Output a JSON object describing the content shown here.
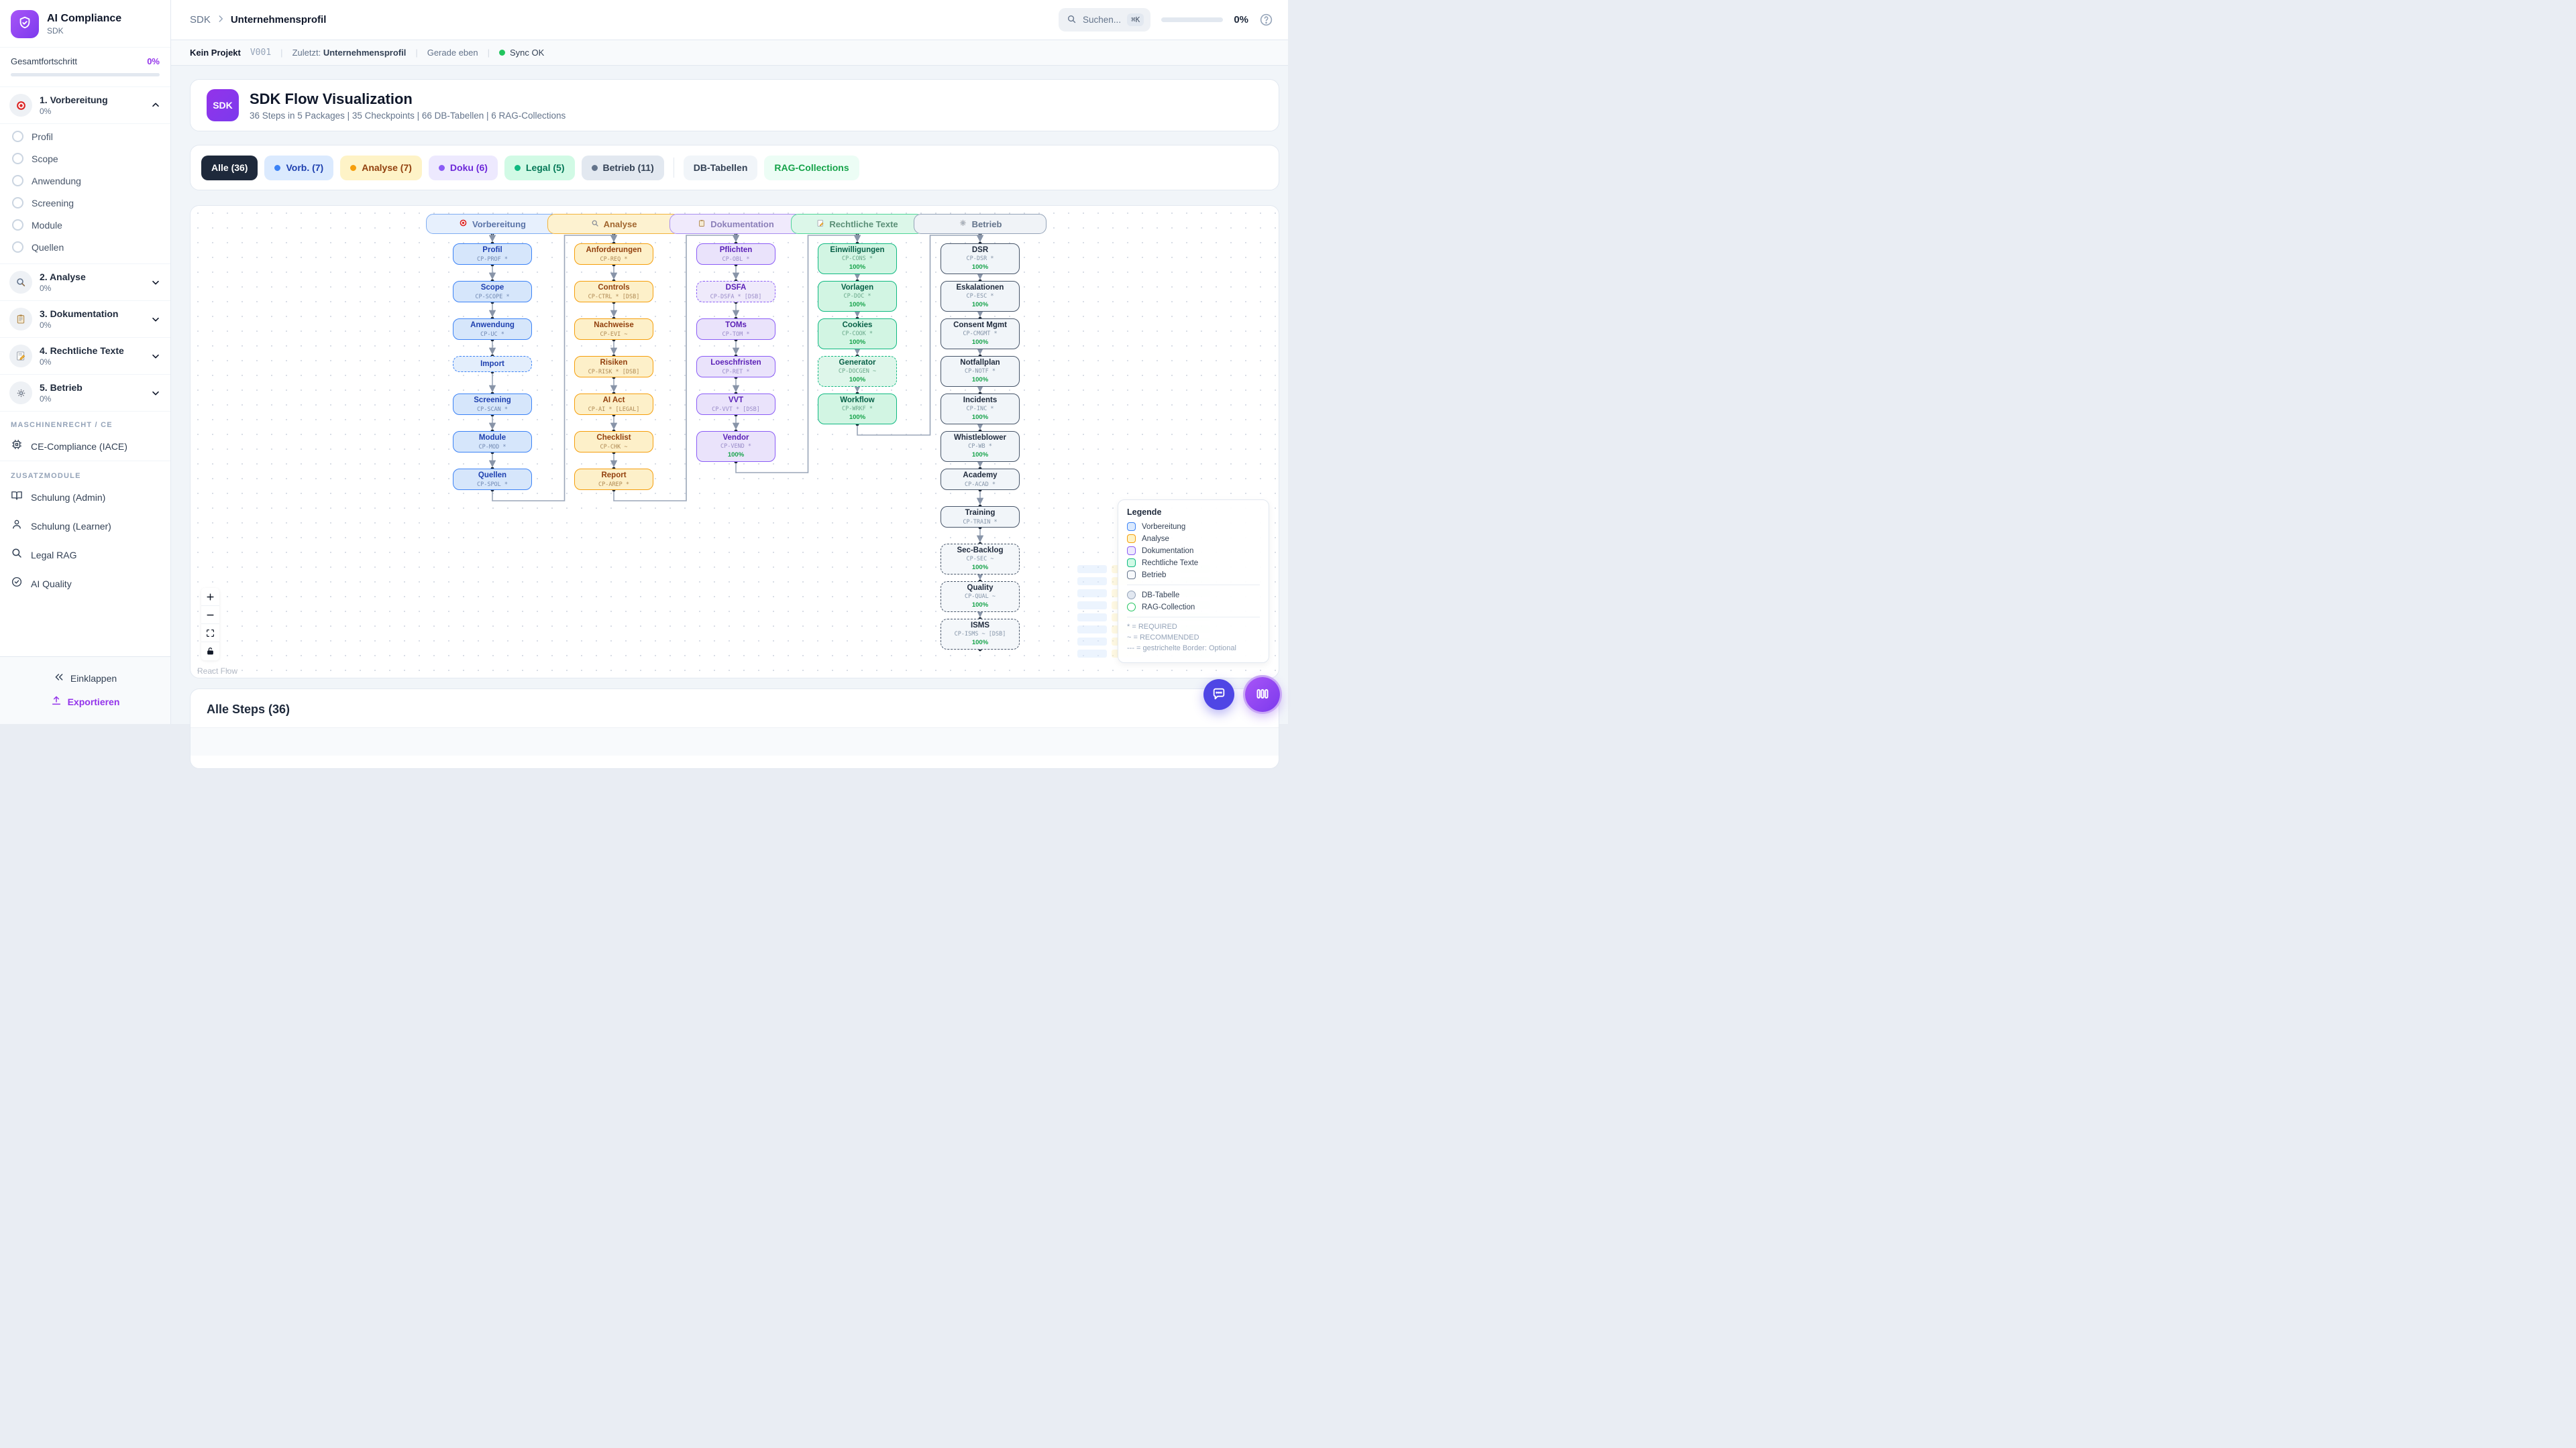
{
  "sidebar": {
    "app_title": "AI Compliance",
    "app_subtitle": "SDK",
    "progress_label": "Gesamtfortschritt",
    "progress_value": "0%",
    "sections": [
      {
        "icon": "target-icon",
        "label": "1. Vorbereitung",
        "percent": "0%",
        "expanded": true,
        "items": [
          "Profil",
          "Scope",
          "Anwendung",
          "Screening",
          "Module",
          "Quellen"
        ]
      },
      {
        "icon": "magnifier-icon",
        "label": "2. Analyse",
        "percent": "0%"
      },
      {
        "icon": "clipboard-icon",
        "label": "3. Dokumentation",
        "percent": "0%"
      },
      {
        "icon": "memo-icon",
        "label": "4. Rechtliche Texte",
        "percent": "0%"
      },
      {
        "icon": "gear-icon",
        "label": "5. Betrieb",
        "percent": "0%"
      }
    ],
    "groups": [
      {
        "heading": "MASCHINENRECHT / CE",
        "items": [
          {
            "icon": "chip-icon",
            "label": "CE-Compliance (IACE)"
          }
        ]
      },
      {
        "heading": "ZUSATZMODULE",
        "items": [
          {
            "icon": "book-icon",
            "label": "Schulung (Admin)"
          },
          {
            "icon": "user-icon",
            "label": "Schulung (Learner)"
          },
          {
            "icon": "search-icon",
            "label": "Legal RAG"
          },
          {
            "icon": "check-circle-icon",
            "label": "AI Quality"
          }
        ]
      }
    ],
    "collapse_label": "Einklappen",
    "export_label": "Exportieren"
  },
  "header": {
    "breadcrumb": [
      "SDK",
      "Unternehmensprofil"
    ],
    "search_placeholder": "Suchen...",
    "search_kbd": "⌘K",
    "progress": "0%"
  },
  "statusbar": {
    "project": "Kein Projekt",
    "version": "V001",
    "last_label": "Zuletzt:",
    "last_value": "Unternehmensprofil",
    "time": "Gerade eben",
    "sync": "Sync OK"
  },
  "hero": {
    "badge": "SDK",
    "title": "SDK Flow Visualization",
    "subtitle": "36 Steps in 5 Packages | 35 Checkpoints | 66 DB-Tabellen | 6 RAG-Collections"
  },
  "filters": [
    {
      "label": "Alle (36)",
      "style": "all"
    },
    {
      "label": "Vorb. (7)",
      "style": "blue",
      "dot": "#3b82f6"
    },
    {
      "label": "Analyse (7)",
      "style": "yellow",
      "dot": "#f59e0b"
    },
    {
      "label": "Doku (6)",
      "style": "purple",
      "dot": "#8b5cf6"
    },
    {
      "label": "Legal (5)",
      "style": "green",
      "dot": "#10b981"
    },
    {
      "label": "Betrieb (11)",
      "style": "slate",
      "dot": "#64748b"
    },
    {
      "label": "DB-Tabellen",
      "style": "db"
    },
    {
      "label": "RAG-Collections",
      "style": "rag"
    }
  ],
  "flow": {
    "columns": [
      {
        "header": "Vorbereitung",
        "icon": "target-icon",
        "color": "blue",
        "hex": "#3b82f6",
        "nodes": [
          {
            "title": "Profil",
            "code": "CP-PROF *"
          },
          {
            "title": "Scope",
            "code": "CP-SCOPE *"
          },
          {
            "title": "Anwendung",
            "code": "CP-UC *"
          },
          {
            "title": "Import",
            "dashed": true
          },
          {
            "title": "Screening",
            "code": "CP-SCAN *"
          },
          {
            "title": "Module",
            "code": "CP-MOD *"
          },
          {
            "title": "Quellen",
            "code": "CP-SPOL *"
          }
        ]
      },
      {
        "header": "Analyse",
        "icon": "magnifier-icon",
        "color": "yellow",
        "hex": "#f59e0b",
        "nodes": [
          {
            "title": "Anforderungen",
            "code": "CP-REQ *"
          },
          {
            "title": "Controls",
            "code": "CP-CTRL * [DSB]"
          },
          {
            "title": "Nachweise",
            "code": "CP-EVI ~"
          },
          {
            "title": "Risiken",
            "code": "CP-RISK * [DSB]"
          },
          {
            "title": "AI Act",
            "code": "CP-AI * [LEGAL]"
          },
          {
            "title": "Checklist",
            "code": "CP-CHK ~"
          },
          {
            "title": "Report",
            "code": "CP-AREP *"
          }
        ]
      },
      {
        "header": "Dokumentation",
        "icon": "clipboard-icon",
        "color": "purple",
        "hex": "#8b5cf6",
        "nodes": [
          {
            "title": "Pflichten",
            "code": "CP-OBL *"
          },
          {
            "title": "DSFA",
            "code": "CP-DSFA * [DSB]",
            "dashed": true
          },
          {
            "title": "TOMs",
            "code": "CP-TOM *"
          },
          {
            "title": "Loeschfristen",
            "code": "CP-RET *"
          },
          {
            "title": "VVT",
            "code": "CP-VVT * [DSB]"
          },
          {
            "title": "Vendor",
            "code": "CP-VEND *",
            "progress": "100%"
          }
        ]
      },
      {
        "header": "Rechtliche Texte",
        "icon": "memo-icon",
        "color": "green",
        "hex": "#10b981",
        "nodes": [
          {
            "title": "Einwilligungen",
            "code": "CP-CONS *",
            "progress": "100%"
          },
          {
            "title": "Vorlagen",
            "code": "CP-DOC *",
            "progress": "100%"
          },
          {
            "title": "Cookies",
            "code": "CP-COOK *",
            "progress": "100%"
          },
          {
            "title": "Generator",
            "code": "CP-DOCGEN ~",
            "progress": "100%",
            "dashed": true
          },
          {
            "title": "Workflow",
            "code": "CP-WRKF *",
            "progress": "100%"
          }
        ]
      },
      {
        "header": "Betrieb",
        "icon": "gear-icon",
        "color": "slate",
        "hex": "#64748b",
        "nodes": [
          {
            "title": "DSR",
            "code": "CP-DSR *",
            "progress": "100%"
          },
          {
            "title": "Eskalationen",
            "code": "CP-ESC *",
            "progress": "100%"
          },
          {
            "title": "Consent Mgmt",
            "code": "CP-CMGMT *",
            "progress": "100%"
          },
          {
            "title": "Notfallplan",
            "code": "CP-NOTF *",
            "progress": "100%"
          },
          {
            "title": "Incidents",
            "code": "CP-INC *",
            "progress": "100%"
          },
          {
            "title": "Whistleblower",
            "code": "CP-WB *",
            "progress": "100%"
          },
          {
            "title": "Academy",
            "code": "CP-ACAD *"
          },
          {
            "title": "Training",
            "code": "CP-TRAIN *"
          },
          {
            "title": "Sec-Backlog",
            "code": "CP-SEC ~",
            "progress": "100%",
            "dashed": true
          },
          {
            "title": "Quality",
            "code": "CP-QUAL ~",
            "progress": "100%",
            "dashed": true
          },
          {
            "title": "ISMS",
            "code": "CP-ISMS ~ [DSB]",
            "progress": "100%",
            "dashed": true
          }
        ]
      }
    ],
    "legend": {
      "title": "Legende",
      "categories": [
        {
          "label": "Vorbereitung",
          "color": "#3b82f6"
        },
        {
          "label": "Analyse",
          "color": "#f59e0b"
        },
        {
          "label": "Dokumentation",
          "color": "#8b5cf6"
        },
        {
          "label": "Rechtliche Texte",
          "color": "#10b981"
        },
        {
          "label": "Betrieb",
          "color": "#64748b"
        }
      ],
      "shapes": [
        {
          "label": "DB-Tabelle"
        },
        {
          "label": "RAG-Collection"
        }
      ],
      "notes": [
        "* = REQUIRED",
        "~ = RECOMMENDED",
        "--- = gestrichelte Border: Optional"
      ]
    },
    "attribution": "React Flow"
  },
  "steps_panel": {
    "title": "Alle Steps (36)"
  }
}
